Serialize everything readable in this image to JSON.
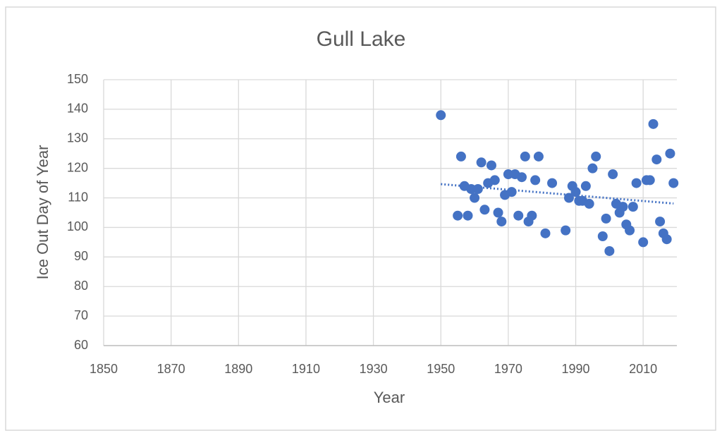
{
  "chart_data": {
    "type": "scatter",
    "title": "Gull Lake",
    "x_label": "Year",
    "y_label": "Ice Out Day of Year",
    "x": [
      1950,
      1955,
      1956,
      1957,
      1958,
      1959,
      1960,
      1961,
      1962,
      1963,
      1964,
      1965,
      1966,
      1967,
      1968,
      1969,
      1970,
      1971,
      1972,
      1973,
      1974,
      1975,
      1976,
      1977,
      1978,
      1979,
      1981,
      1983,
      1987,
      1988,
      1989,
      1990,
      1991,
      1992,
      1993,
      1994,
      1995,
      1996,
      1998,
      1999,
      2000,
      2001,
      2002,
      2003,
      2004,
      2005,
      2006,
      2007,
      2008,
      2010,
      2011,
      2012,
      2013,
      2014,
      2015,
      2016,
      2017,
      2018,
      2019
    ],
    "values": [
      138,
      104,
      124,
      114,
      104,
      113,
      110,
      113,
      122,
      106,
      115,
      121,
      116,
      105,
      102,
      111,
      118,
      112,
      118,
      104,
      117,
      124,
      102,
      104,
      116,
      124,
      98,
      115,
      99,
      110,
      114,
      112,
      109,
      109,
      114,
      108,
      120,
      124,
      97,
      103,
      92,
      118,
      108,
      105,
      107,
      101,
      99,
      107,
      115,
      95,
      116,
      116,
      135,
      123,
      102,
      98,
      96,
      125,
      115
    ],
    "color": "#4472c4",
    "trendline": "linear",
    "xlim": [
      1850,
      2020
    ],
    "xticks": [
      1850,
      1870,
      1890,
      1910,
      1930,
      1950,
      1970,
      1990,
      2010
    ],
    "ylim": [
      60,
      150
    ],
    "yticks": [
      60,
      70,
      80,
      90,
      100,
      110,
      120,
      130,
      140,
      150
    ],
    "grid": true
  }
}
